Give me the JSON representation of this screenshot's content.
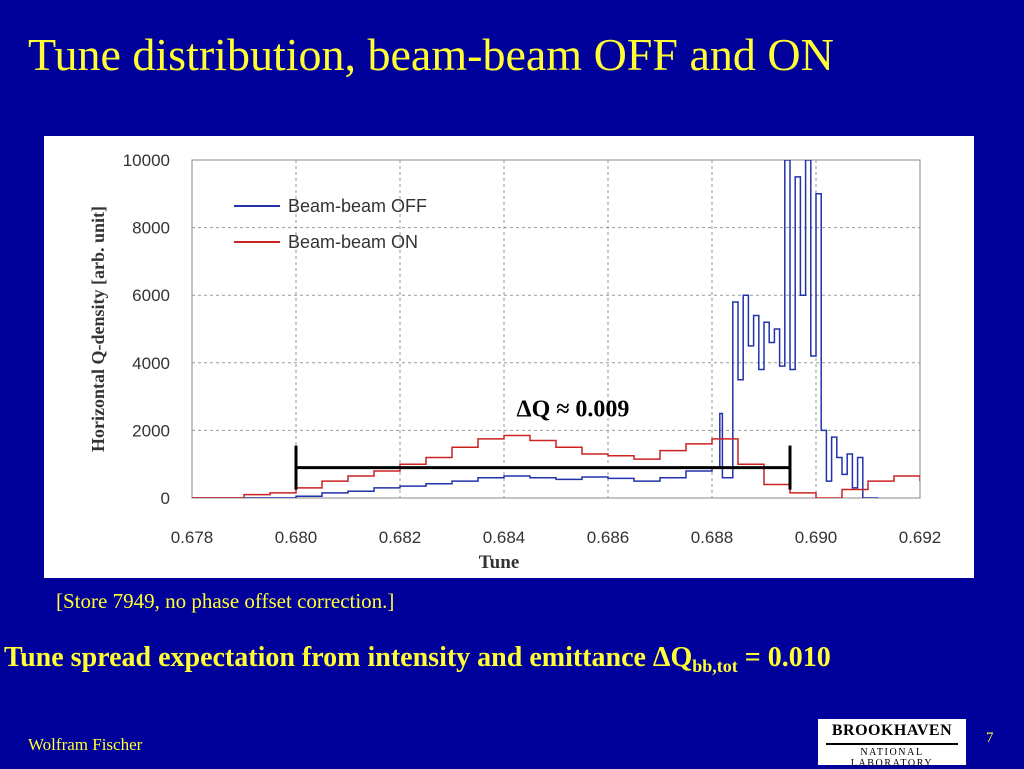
{
  "slide": {
    "title": "Tune distribution, beam-beam OFF and ON",
    "caption": "[Store 7949, no phase offset correction.]",
    "expectation_text": "Tune spread expectation from intensity and emittance ",
    "expectation_symbol": "ΔQ",
    "expectation_sub": "bb,tot",
    "expectation_value": " = 0.010",
    "author": "Wolfram Fischer",
    "page_number": "7",
    "logo_top": "BROOKHAVEN",
    "logo_bottom": "NATIONAL LABORATORY"
  },
  "chart_data": {
    "type": "line",
    "xlabel": "Tune",
    "ylabel": "Horizontal Q-density [arb. unit]",
    "xlim": [
      0.678,
      0.692
    ],
    "ylim": [
      0,
      10000
    ],
    "x_ticks": [
      "0.678",
      "0.680",
      "0.682",
      "0.684",
      "0.686",
      "0.688",
      "0.690",
      "0.692"
    ],
    "y_ticks": [
      "0",
      "2000",
      "4000",
      "6000",
      "8000",
      "10000"
    ],
    "grid": true,
    "legend_position": "top-left",
    "annotation": {
      "text": "ΔQ ≈ 0.009",
      "from": 0.68,
      "to": 0.6895,
      "y": 900
    },
    "series": [
      {
        "name": "Beam-beam OFF",
        "color": "#2233aa",
        "x": [
          0.678,
          0.679,
          0.6795,
          0.68,
          0.6805,
          0.681,
          0.6815,
          0.682,
          0.6825,
          0.683,
          0.6835,
          0.684,
          0.6845,
          0.685,
          0.6855,
          0.686,
          0.6865,
          0.687,
          0.6875,
          0.688,
          0.68815,
          0.6882,
          0.6884,
          0.6885,
          0.6886,
          0.6887,
          0.6888,
          0.6889,
          0.689,
          0.6891,
          0.6892,
          0.6893,
          0.6894,
          0.6895,
          0.6896,
          0.6897,
          0.6898,
          0.6899,
          0.69,
          0.6901,
          0.6902,
          0.6903,
          0.6904,
          0.6905,
          0.6906,
          0.6907,
          0.6908,
          0.6909,
          0.691,
          0.6912
        ],
        "y": [
          0,
          0,
          0,
          50,
          150,
          200,
          300,
          350,
          420,
          500,
          600,
          650,
          600,
          550,
          620,
          580,
          500,
          600,
          800,
          900,
          2500,
          600,
          5800,
          3500,
          6000,
          4500,
          5400,
          3800,
          5200,
          4600,
          5000,
          3900,
          10000,
          3800,
          9500,
          6000,
          10000,
          4200,
          9000,
          2000,
          500,
          1800,
          1200,
          700,
          1300,
          300,
          1200,
          0,
          0,
          0
        ]
      },
      {
        "name": "Beam-beam ON",
        "color": "#cc2222",
        "x": [
          0.678,
          0.679,
          0.6795,
          0.68,
          0.6805,
          0.681,
          0.6815,
          0.682,
          0.6825,
          0.683,
          0.6835,
          0.684,
          0.6845,
          0.685,
          0.6855,
          0.686,
          0.6865,
          0.687,
          0.6875,
          0.688,
          0.6885,
          0.689,
          0.6895,
          0.69,
          0.6905,
          0.691,
          0.6915,
          0.692
        ],
        "y": [
          0,
          100,
          150,
          300,
          500,
          650,
          800,
          1000,
          1200,
          1500,
          1750,
          1850,
          1700,
          1500,
          1300,
          1250,
          1150,
          1400,
          1600,
          1750,
          1000,
          400,
          150,
          0,
          250,
          500,
          650,
          500
        ]
      }
    ]
  }
}
